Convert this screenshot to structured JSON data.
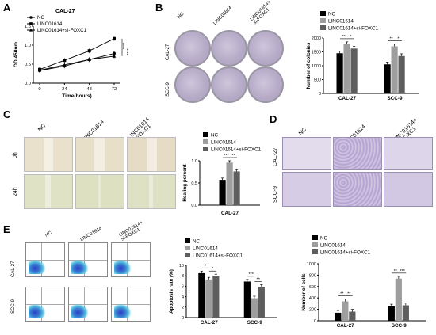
{
  "panel_labels": [
    "A",
    "B",
    "C",
    "D",
    "E"
  ],
  "panel_a": {
    "title": "CAL-27",
    "legend": [
      "NC",
      "LINC01614",
      "LINC01614+si-FOXC1"
    ],
    "ylabel": "OD 450nm",
    "xlabel": "Time(hours)",
    "yticks": [
      "0.0",
      "0.5",
      "1.0",
      "1.5"
    ],
    "xticks": [
      "0",
      "24",
      "48",
      "72"
    ],
    "sig": [
      "****",
      "****"
    ]
  },
  "panel_b": {
    "col_labels": [
      "NC",
      "LINC01614",
      "LINC01614+\nsi-FOXC1"
    ],
    "row_labels": [
      "CAL-27",
      "SCC-9"
    ],
    "legend": [
      "NC",
      "LINC01614",
      "LINC01614+si-FOXC1"
    ],
    "ylabel": "Number of colonies",
    "yticks": [
      "0",
      "500",
      "1000",
      "1500",
      "2000"
    ],
    "categories": [
      "CAL-27",
      "SCC-9"
    ],
    "sig": [
      "**",
      "*",
      "**",
      "*"
    ]
  },
  "panel_c": {
    "col_labels": [
      "NC",
      "LINC01614",
      "LINC01614\nsi-FOXC1"
    ],
    "row_labels": [
      "0h",
      "24h"
    ],
    "legend": [
      "NC",
      "LINC01614",
      "LINC01614+si-FOXC1"
    ],
    "ylabel": "Healing percent",
    "yticks": [
      "0.0",
      "0.5",
      "1.0"
    ],
    "xlabel": "CAL-27",
    "sig": [
      "***",
      "**"
    ]
  },
  "panel_d": {
    "col_labels": [
      "NC",
      "LINC01614",
      "LINC01614+\nsi-FOXC1"
    ],
    "row_labels": [
      "CAL-27",
      "SCC-9"
    ]
  },
  "panel_e": {
    "col_labels": [
      "NC",
      "LINC01614",
      "LINC01614+\nsi-FOXC1"
    ],
    "row_labels": [
      "CAL-27",
      "SCC-9"
    ],
    "apoptosis": {
      "legend": [
        "NC",
        "LINC01614",
        "LINC01614+si-FOXC1"
      ],
      "ylabel": "Apoptosis rate (%)",
      "yticks": [
        "0",
        "2",
        "4",
        "6",
        "8",
        "10"
      ],
      "categories": [
        "CAL-27",
        "SCC-9"
      ],
      "sig": [
        "*",
        "*",
        "***",
        "**"
      ]
    },
    "cells": {
      "legend": [
        "NC",
        "LINC01614",
        "LINC01614+si-FOXC1"
      ],
      "ylabel": "Number of cells",
      "yticks": [
        "0",
        "200",
        "400",
        "600",
        "800",
        "1000"
      ],
      "categories": [
        "CAL-27",
        "SCC-9"
      ],
      "sig": [
        "**",
        "**",
        "**",
        "***"
      ]
    }
  },
  "colors": {
    "nc": "#000000",
    "linc": "#9e9e9e",
    "si": "#5e5e5e"
  },
  "chart_data": [
    {
      "type": "line",
      "title": "CAL-27",
      "xlabel": "Time(hours)",
      "ylabel": "OD 450nm",
      "x": [
        0,
        24,
        48,
        72
      ],
      "ylim": [
        0,
        1.5
      ],
      "series": [
        {
          "name": "NC",
          "values": [
            0.33,
            0.45,
            0.62,
            0.78
          ]
        },
        {
          "name": "LINC01614",
          "values": [
            0.36,
            0.6,
            0.85,
            1.17
          ]
        },
        {
          "name": "LINC01614+si-FOXC1",
          "values": [
            0.34,
            0.48,
            0.62,
            0.71
          ]
        }
      ]
    },
    {
      "type": "bar",
      "ylabel": "Number of colonies",
      "categories": [
        "CAL-27",
        "SCC-9"
      ],
      "ylim": [
        0,
        2000
      ],
      "series": [
        {
          "name": "NC",
          "values": [
            1450,
            1050
          ]
        },
        {
          "name": "LINC01614",
          "values": [
            1780,
            1700
          ]
        },
        {
          "name": "LINC01614+si-FOXC1",
          "values": [
            1620,
            1350
          ]
        }
      ]
    },
    {
      "type": "bar",
      "xlabel": "CAL-27",
      "ylabel": "Healing percent",
      "categories": [
        "CAL-27"
      ],
      "ylim": [
        0,
        1.0
      ],
      "series": [
        {
          "name": "NC",
          "values": [
            0.57
          ]
        },
        {
          "name": "LINC01614",
          "values": [
            0.96
          ]
        },
        {
          "name": "LINC01614+si-FOXC1",
          "values": [
            0.76
          ]
        }
      ]
    },
    {
      "type": "bar",
      "ylabel": "Apoptosis rate (%)",
      "categories": [
        "CAL-27",
        "SCC-9"
      ],
      "ylim": [
        0,
        10
      ],
      "series": [
        {
          "name": "NC",
          "values": [
            8.5,
            6.9
          ]
        },
        {
          "name": "LINC01614",
          "values": [
            7.3,
            3.7
          ]
        },
        {
          "name": "LINC01614+si-FOXC1",
          "values": [
            7.9,
            5.9
          ]
        }
      ]
    },
    {
      "type": "bar",
      "ylabel": "Number of cells",
      "categories": [
        "CAL-27",
        "SCC-9"
      ],
      "ylim": [
        0,
        1000
      ],
      "series": [
        {
          "name": "NC",
          "values": [
            140,
            250
          ]
        },
        {
          "name": "LINC01614",
          "values": [
            340,
            740
          ]
        },
        {
          "name": "LINC01614+si-FOXC1",
          "values": [
            160,
            270
          ]
        }
      ]
    }
  ]
}
